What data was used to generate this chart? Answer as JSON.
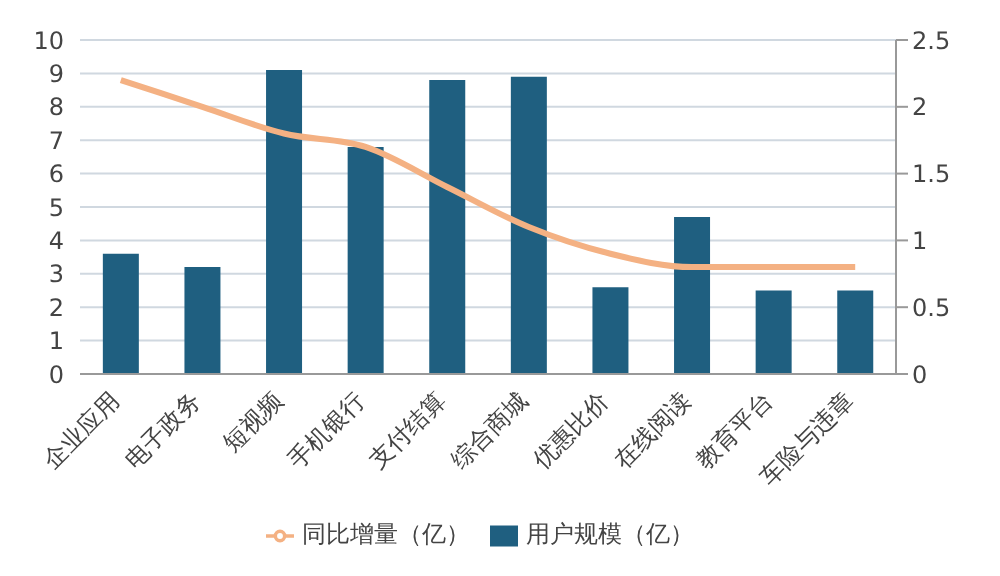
{
  "chart_data": {
    "type": "bar",
    "categories": [
      "企业应用",
      "电子政务",
      "短视频",
      "手机银行",
      "支付结算",
      "综合商城",
      "优惠比价",
      "在线阅读",
      "教育平台",
      "车险与违章"
    ],
    "series": [
      {
        "name": "用户规模（亿）",
        "color": "#1f5f80",
        "values": [
          3.6,
          3.2,
          9.1,
          6.8,
          8.8,
          8.9,
          2.6,
          4.7,
          2.5,
          2.5
        ]
      },
      {
        "name": "同比增量（亿）",
        "type": "line",
        "axis": "y2",
        "color": "#f4b183",
        "values": [
          2.2,
          2.0,
          1.8,
          1.7,
          1.4,
          1.1,
          0.9,
          0.8,
          0.8,
          0.8
        ]
      }
    ],
    "ylim": [
      0,
      10
    ],
    "yticks": [
      0,
      1,
      2,
      3,
      4,
      5,
      6,
      7,
      8,
      9,
      10
    ],
    "y2lim": [
      0,
      2.5
    ],
    "y2ticks": [
      0,
      0.5,
      1,
      1.5,
      2,
      2.5
    ],
    "grid": "y",
    "legend": "bottom",
    "marker": "none"
  }
}
